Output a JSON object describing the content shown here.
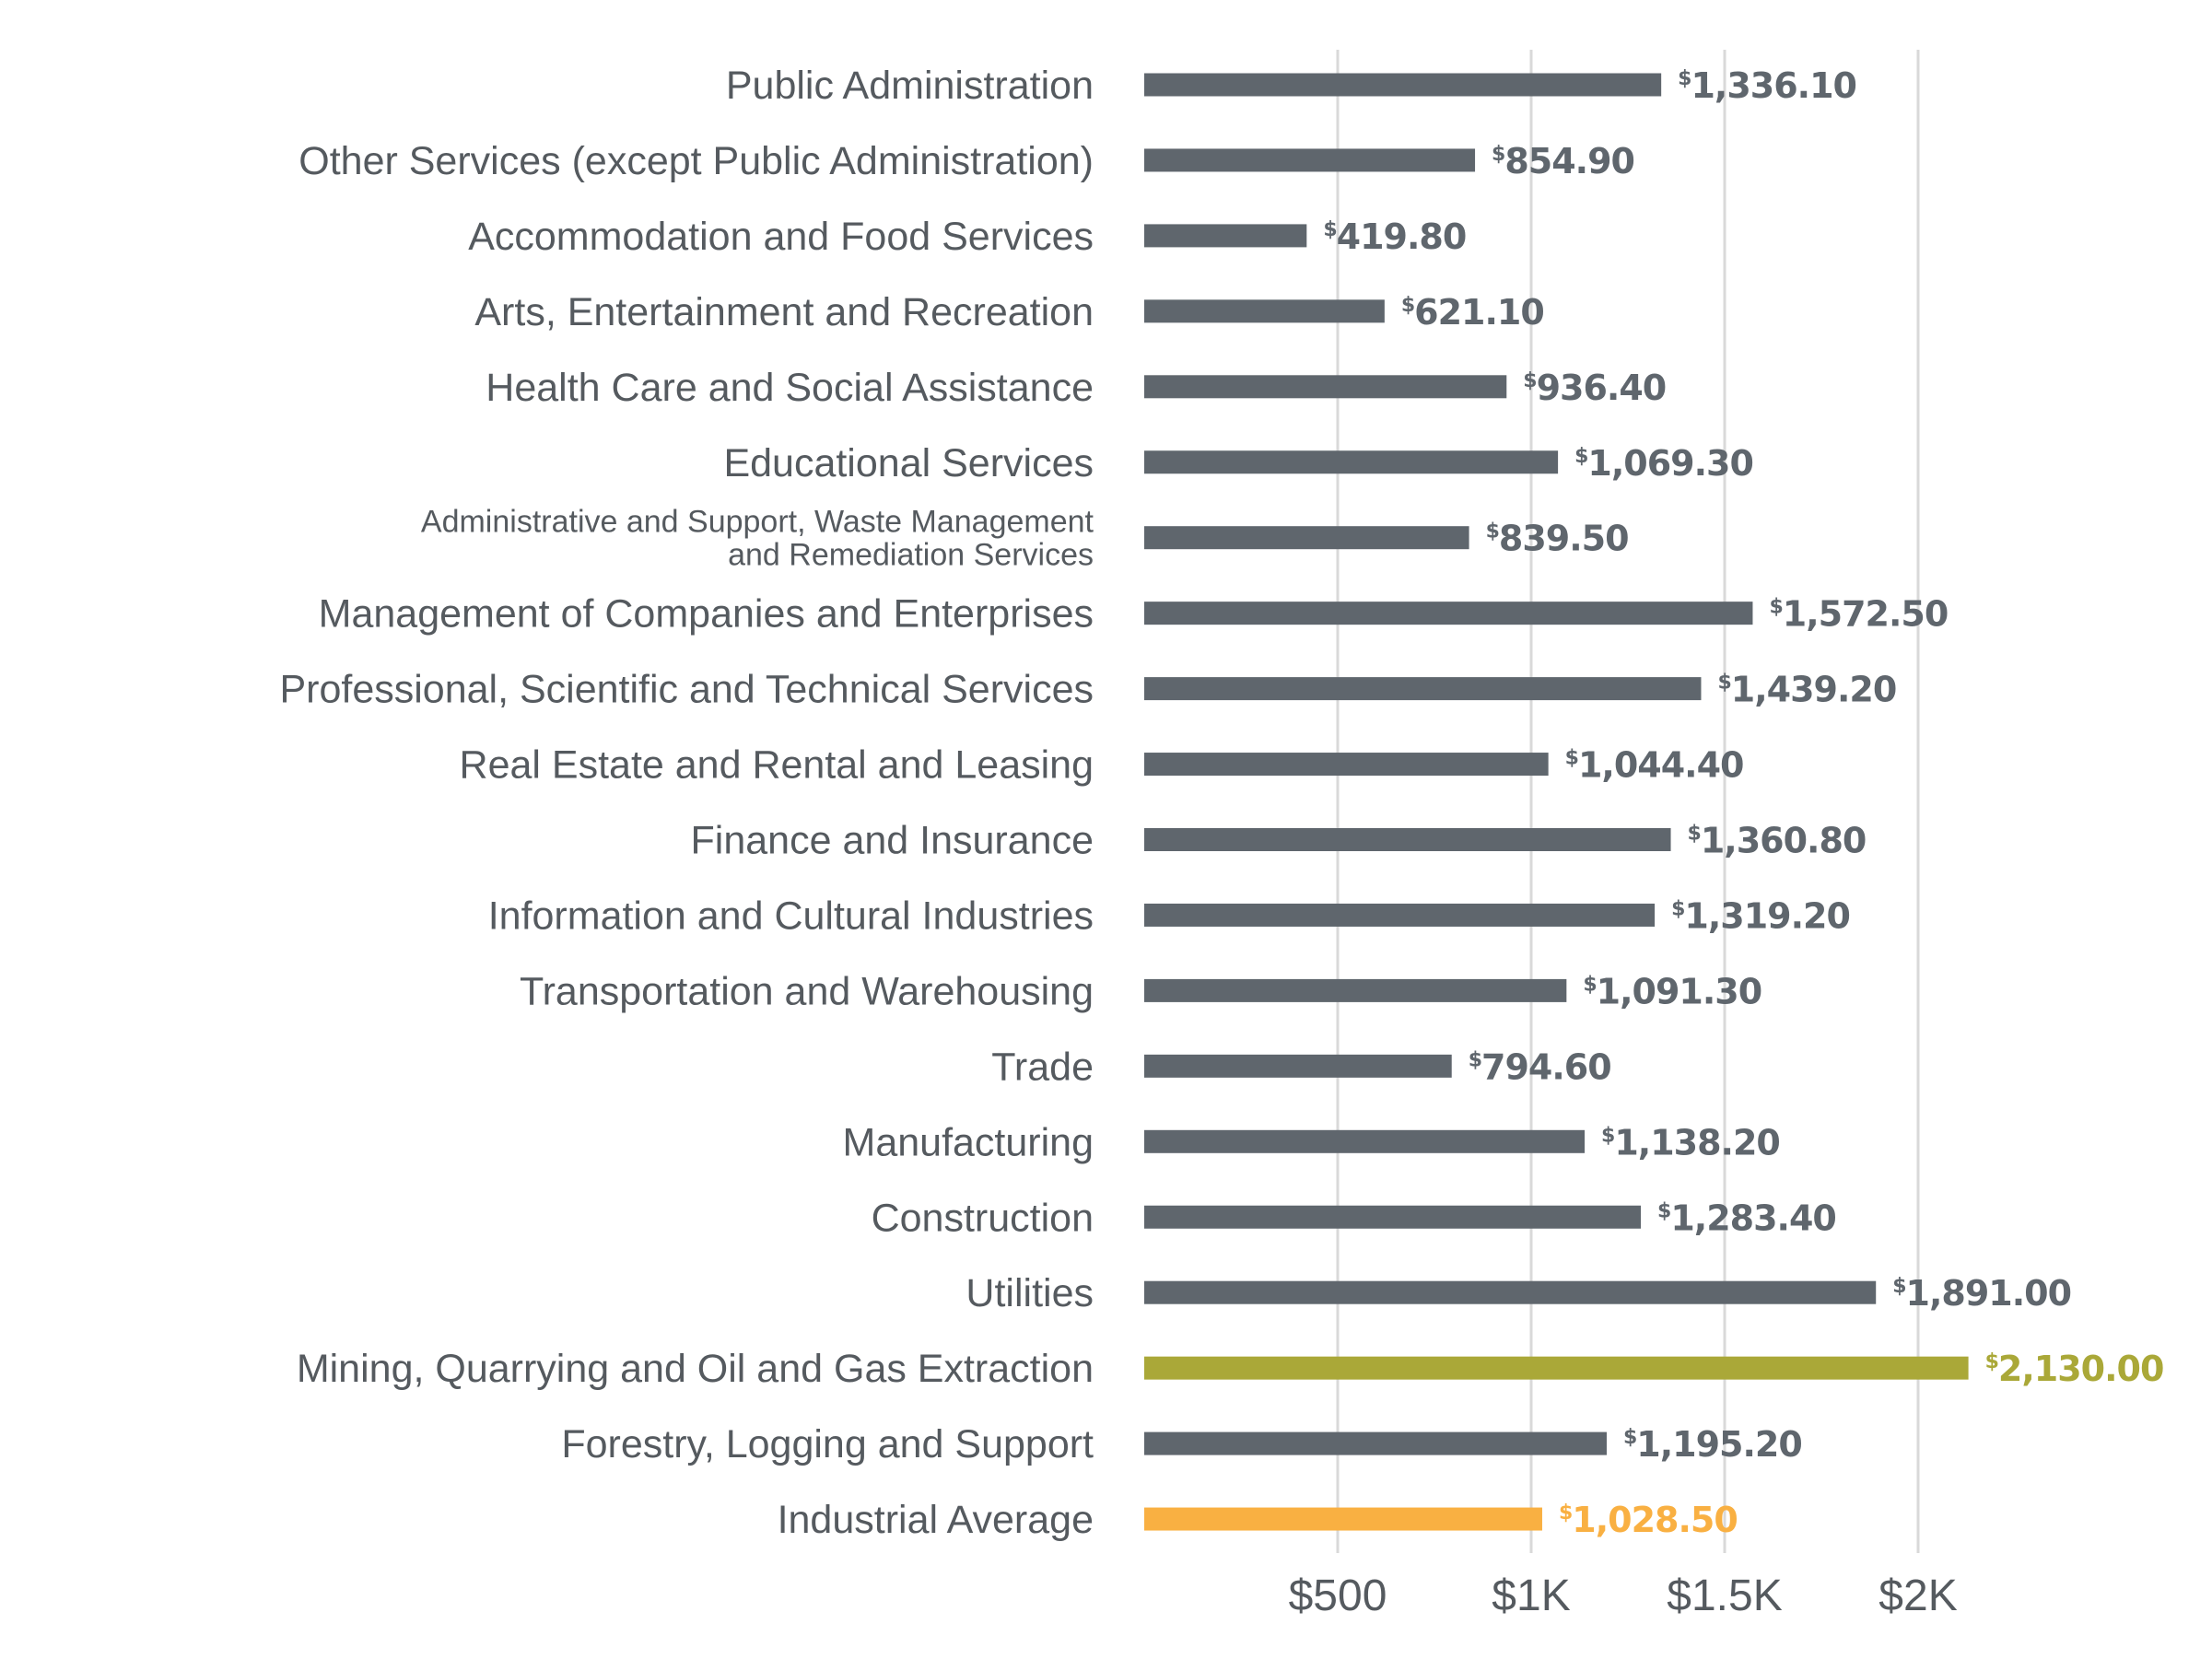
{
  "chart_data": {
    "type": "bar",
    "orientation": "horizontal",
    "title": "",
    "xlabel": "",
    "ylabel": "",
    "xlim": [
      0,
      2300
    ],
    "grid": true,
    "currency_symbol": "$",
    "categories": [
      "Public Administration",
      "Other Services (except Public Administration)",
      "Accommodation and Food Services",
      "Arts, Entertainment and Recreation",
      "Health Care and Social Assistance",
      "Educational Services",
      "Administrative and Support, Waste Management and Remediation Services",
      "Management of Companies and Enterprises",
      "Professional, Scientific and Technical Services",
      "Real Estate and Rental and Leasing",
      "Finance and Insurance",
      "Information and Cultural Industries",
      "Transportation and Warehousing",
      "Trade",
      "Manufacturing",
      "Construction",
      "Utilities",
      "Mining, Quarrying and Oil and Gas Extraction",
      "Forestry, Logging and Support",
      "Industrial Average"
    ],
    "category_label_lines": {
      "6": [
        "Administrative and Support, Waste Management",
        "and Remediation Services"
      ]
    },
    "values": [
      1336.1,
      854.9,
      419.8,
      621.1,
      936.4,
      1069.3,
      839.5,
      1572.5,
      1439.2,
      1044.4,
      1360.8,
      1319.2,
      1091.3,
      794.6,
      1138.2,
      1283.4,
      1891.0,
      2130.0,
      1195.2,
      1028.5
    ],
    "value_labels": [
      "1,336.10",
      "854.90",
      "419.80",
      "621.10",
      "936.40",
      "1,069.30",
      "839.50",
      "1,572.50",
      "1,439.20",
      "1,044.40",
      "1,360.80",
      "1,319.20",
      "1,091.30",
      "794.60",
      "1,138.20",
      "1,283.40",
      "1,891.00",
      "2,130.00",
      "1,195.20",
      "1,028.50"
    ],
    "bar_colors": [
      "#5f666d",
      "#5f666d",
      "#5f666d",
      "#5f666d",
      "#5f666d",
      "#5f666d",
      "#5f666d",
      "#5f666d",
      "#5f666d",
      "#5f666d",
      "#5f666d",
      "#5f666d",
      "#5f666d",
      "#5f666d",
      "#5f666d",
      "#5f666d",
      "#5f666d",
      "#aaa838",
      "#5f666d",
      "#f9b042"
    ],
    "x_ticks": [
      500,
      1000,
      1500,
      2000
    ],
    "x_tick_labels": [
      "$500",
      "$1K",
      "$1.5K",
      "$2K"
    ]
  },
  "colors": {
    "default_bar": "#5f666d",
    "highlight_bar": "#aaa838",
    "average_bar": "#f9b042",
    "grid": "#d9d9d9",
    "label_text": "#555a5f"
  }
}
